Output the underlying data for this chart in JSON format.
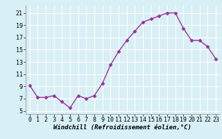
{
  "x": [
    0,
    1,
    2,
    3,
    4,
    5,
    6,
    7,
    8,
    9,
    10,
    11,
    12,
    13,
    14,
    15,
    16,
    17,
    18,
    19,
    20,
    21,
    22,
    23
  ],
  "y": [
    9.2,
    7.2,
    7.2,
    7.5,
    6.5,
    5.5,
    7.5,
    7.0,
    7.5,
    9.5,
    12.5,
    14.7,
    16.5,
    18.0,
    19.5,
    20.0,
    20.5,
    21.0,
    21.0,
    18.5,
    16.5,
    16.5,
    15.5,
    13.5
  ],
  "line_color": "#993399",
  "marker": "D",
  "marker_size": 2.5,
  "line_width": 1.0,
  "xlabel": "Windchill (Refroidissement éolien,°C)",
  "xlabel_fontsize": 6.5,
  "ylabel_ticks": [
    5,
    7,
    9,
    11,
    13,
    15,
    17,
    19,
    21
  ],
  "xlim": [
    -0.5,
    23.5
  ],
  "ylim": [
    4.5,
    22.2
  ],
  "background_color": "#d7eff5",
  "grid_color": "#ffffff",
  "tick_fontsize": 6.0,
  "xtick_labels": [
    "0",
    "1",
    "2",
    "3",
    "4",
    "5",
    "6",
    "7",
    "8",
    "9",
    "10",
    "11",
    "12",
    "13",
    "14",
    "15",
    "16",
    "17",
    "18",
    "19",
    "20",
    "21",
    "22",
    "23"
  ]
}
